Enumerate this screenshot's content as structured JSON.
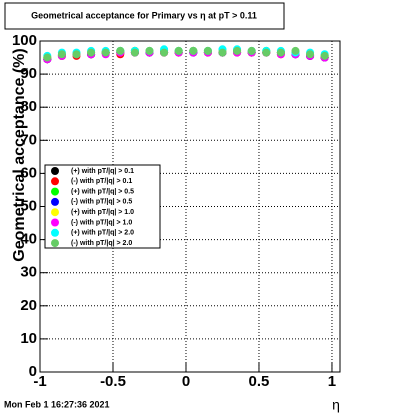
{
  "chart_data": {
    "type": "scatter",
    "title": "Geometrical acceptance for Primary vs  η at pT > 0.11",
    "ylabel": "Geometrical acceptance (%)",
    "xlabel": "η",
    "timestamp": "Mon Feb  1 16:27:36 2021",
    "xlim": [
      -1,
      1.055
    ],
    "ylim": [
      0,
      100
    ],
    "xticks": [
      -1,
      -0.5,
      0,
      0.5,
      1
    ],
    "yticks": [
      0,
      10,
      20,
      30,
      40,
      50,
      60,
      70,
      80,
      90,
      100
    ],
    "grid": true,
    "legend": "left",
    "x": [
      -0.95,
      -0.85,
      -0.75,
      -0.65,
      -0.55,
      -0.45,
      -0.35,
      -0.25,
      -0.15,
      -0.05,
      0.05,
      0.15,
      0.25,
      0.35,
      0.45,
      0.55,
      0.65,
      0.75,
      0.85,
      0.95
    ],
    "series": [
      {
        "name": "(+) with pT/|q| > 0.1",
        "color": "#000000",
        "values": [
          94.5,
          95.5,
          96,
          96,
          96.5,
          96.5,
          97,
          96.5,
          96.5,
          96.5,
          96.5,
          96.5,
          96.5,
          97,
          96.5,
          96.5,
          96.5,
          96,
          95.5,
          95
        ]
      },
      {
        "name": "(-) with pT/|q| > 0.1",
        "color": "#ff0000",
        "values": [
          94.5,
          95.5,
          95.5,
          96,
          96.5,
          96,
          96.5,
          96.5,
          96.5,
          96.5,
          97,
          96.5,
          96.5,
          96.5,
          96.5,
          96.5,
          96,
          96.5,
          95.5,
          95
        ]
      },
      {
        "name": "(+) with pT/|q| > 0.5",
        "color": "#00ff00",
        "values": [
          95,
          96,
          96,
          96.5,
          96.5,
          97,
          97,
          96.5,
          97,
          97,
          97,
          97,
          97,
          97,
          96.5,
          97,
          96.5,
          96.5,
          96,
          95.5
        ]
      },
      {
        "name": "(-) with pT/|q| > 0.5",
        "color": "#0000ff",
        "values": [
          94.5,
          95.5,
          96,
          96,
          96.5,
          96.5,
          96.5,
          96.5,
          96.5,
          96.5,
          96.5,
          96.5,
          96.5,
          96.5,
          96.5,
          96.5,
          96.5,
          96,
          95.5,
          95
        ]
      },
      {
        "name": "(+) with pT/|q| > 1.0",
        "color": "#ffff00",
        "values": [
          95,
          95.5,
          96,
          96.5,
          96.5,
          96.5,
          97,
          97,
          96.5,
          96.5,
          97,
          96.5,
          97,
          96.5,
          96.5,
          96.5,
          96.5,
          96.5,
          96,
          95.5
        ]
      },
      {
        "name": "(-) with pT/|q| > 1.0",
        "color": "#ff00ff",
        "values": [
          94.5,
          95.5,
          96,
          96,
          96,
          96.5,
          96.5,
          96.5,
          96.5,
          96.5,
          96.5,
          96.5,
          96.5,
          96.5,
          96.5,
          96.5,
          96,
          96,
          95.5,
          95
        ]
      },
      {
        "name": "(+) with pT/|q| > 2.0",
        "color": "#00ffff",
        "values": [
          95.5,
          96.5,
          96.5,
          97,
          97,
          97,
          97,
          97,
          97.5,
          97,
          97,
          97,
          97.5,
          97.5,
          97,
          97,
          97,
          96.5,
          96.5,
          96
        ]
      },
      {
        "name": "(-) with pT/|q| > 2.0",
        "color": "#66cc66",
        "values": [
          95,
          96,
          96,
          96.5,
          96.5,
          97,
          96.5,
          97,
          96.5,
          97,
          97,
          97,
          96.5,
          97,
          97,
          96.5,
          96.5,
          97,
          96,
          95.5
        ]
      }
    ]
  }
}
